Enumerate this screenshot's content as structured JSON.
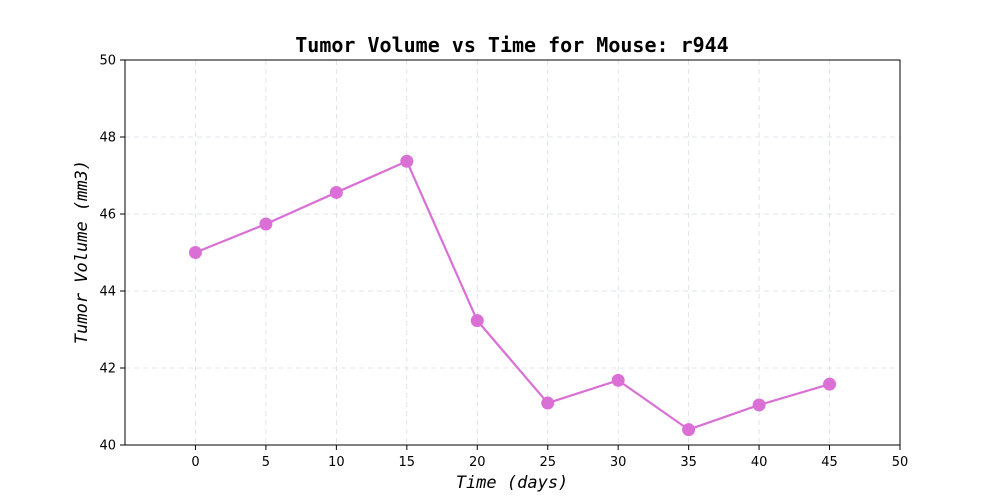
{
  "chart_data": {
    "type": "line",
    "title": "Tumor Volume vs Time for Mouse: r944",
    "xlabel": "Time (days)",
    "ylabel": "Tumor Volume (mm3)",
    "xlim": [
      -5,
      50
    ],
    "ylim": [
      40,
      50
    ],
    "xticks": [
      0,
      5,
      10,
      15,
      20,
      25,
      30,
      35,
      40,
      45,
      50
    ],
    "yticks": [
      40,
      42,
      44,
      46,
      48,
      50
    ],
    "grid": true,
    "series": [
      {
        "color": "#da70d6",
        "marker": "circle",
        "x": [
          0,
          5,
          10,
          15,
          20,
          25,
          30,
          35,
          40,
          45
        ],
        "y": [
          45.0,
          45.74,
          46.56,
          47.37,
          43.23,
          41.09,
          41.68,
          40.4,
          41.04,
          41.58
        ]
      }
    ]
  }
}
